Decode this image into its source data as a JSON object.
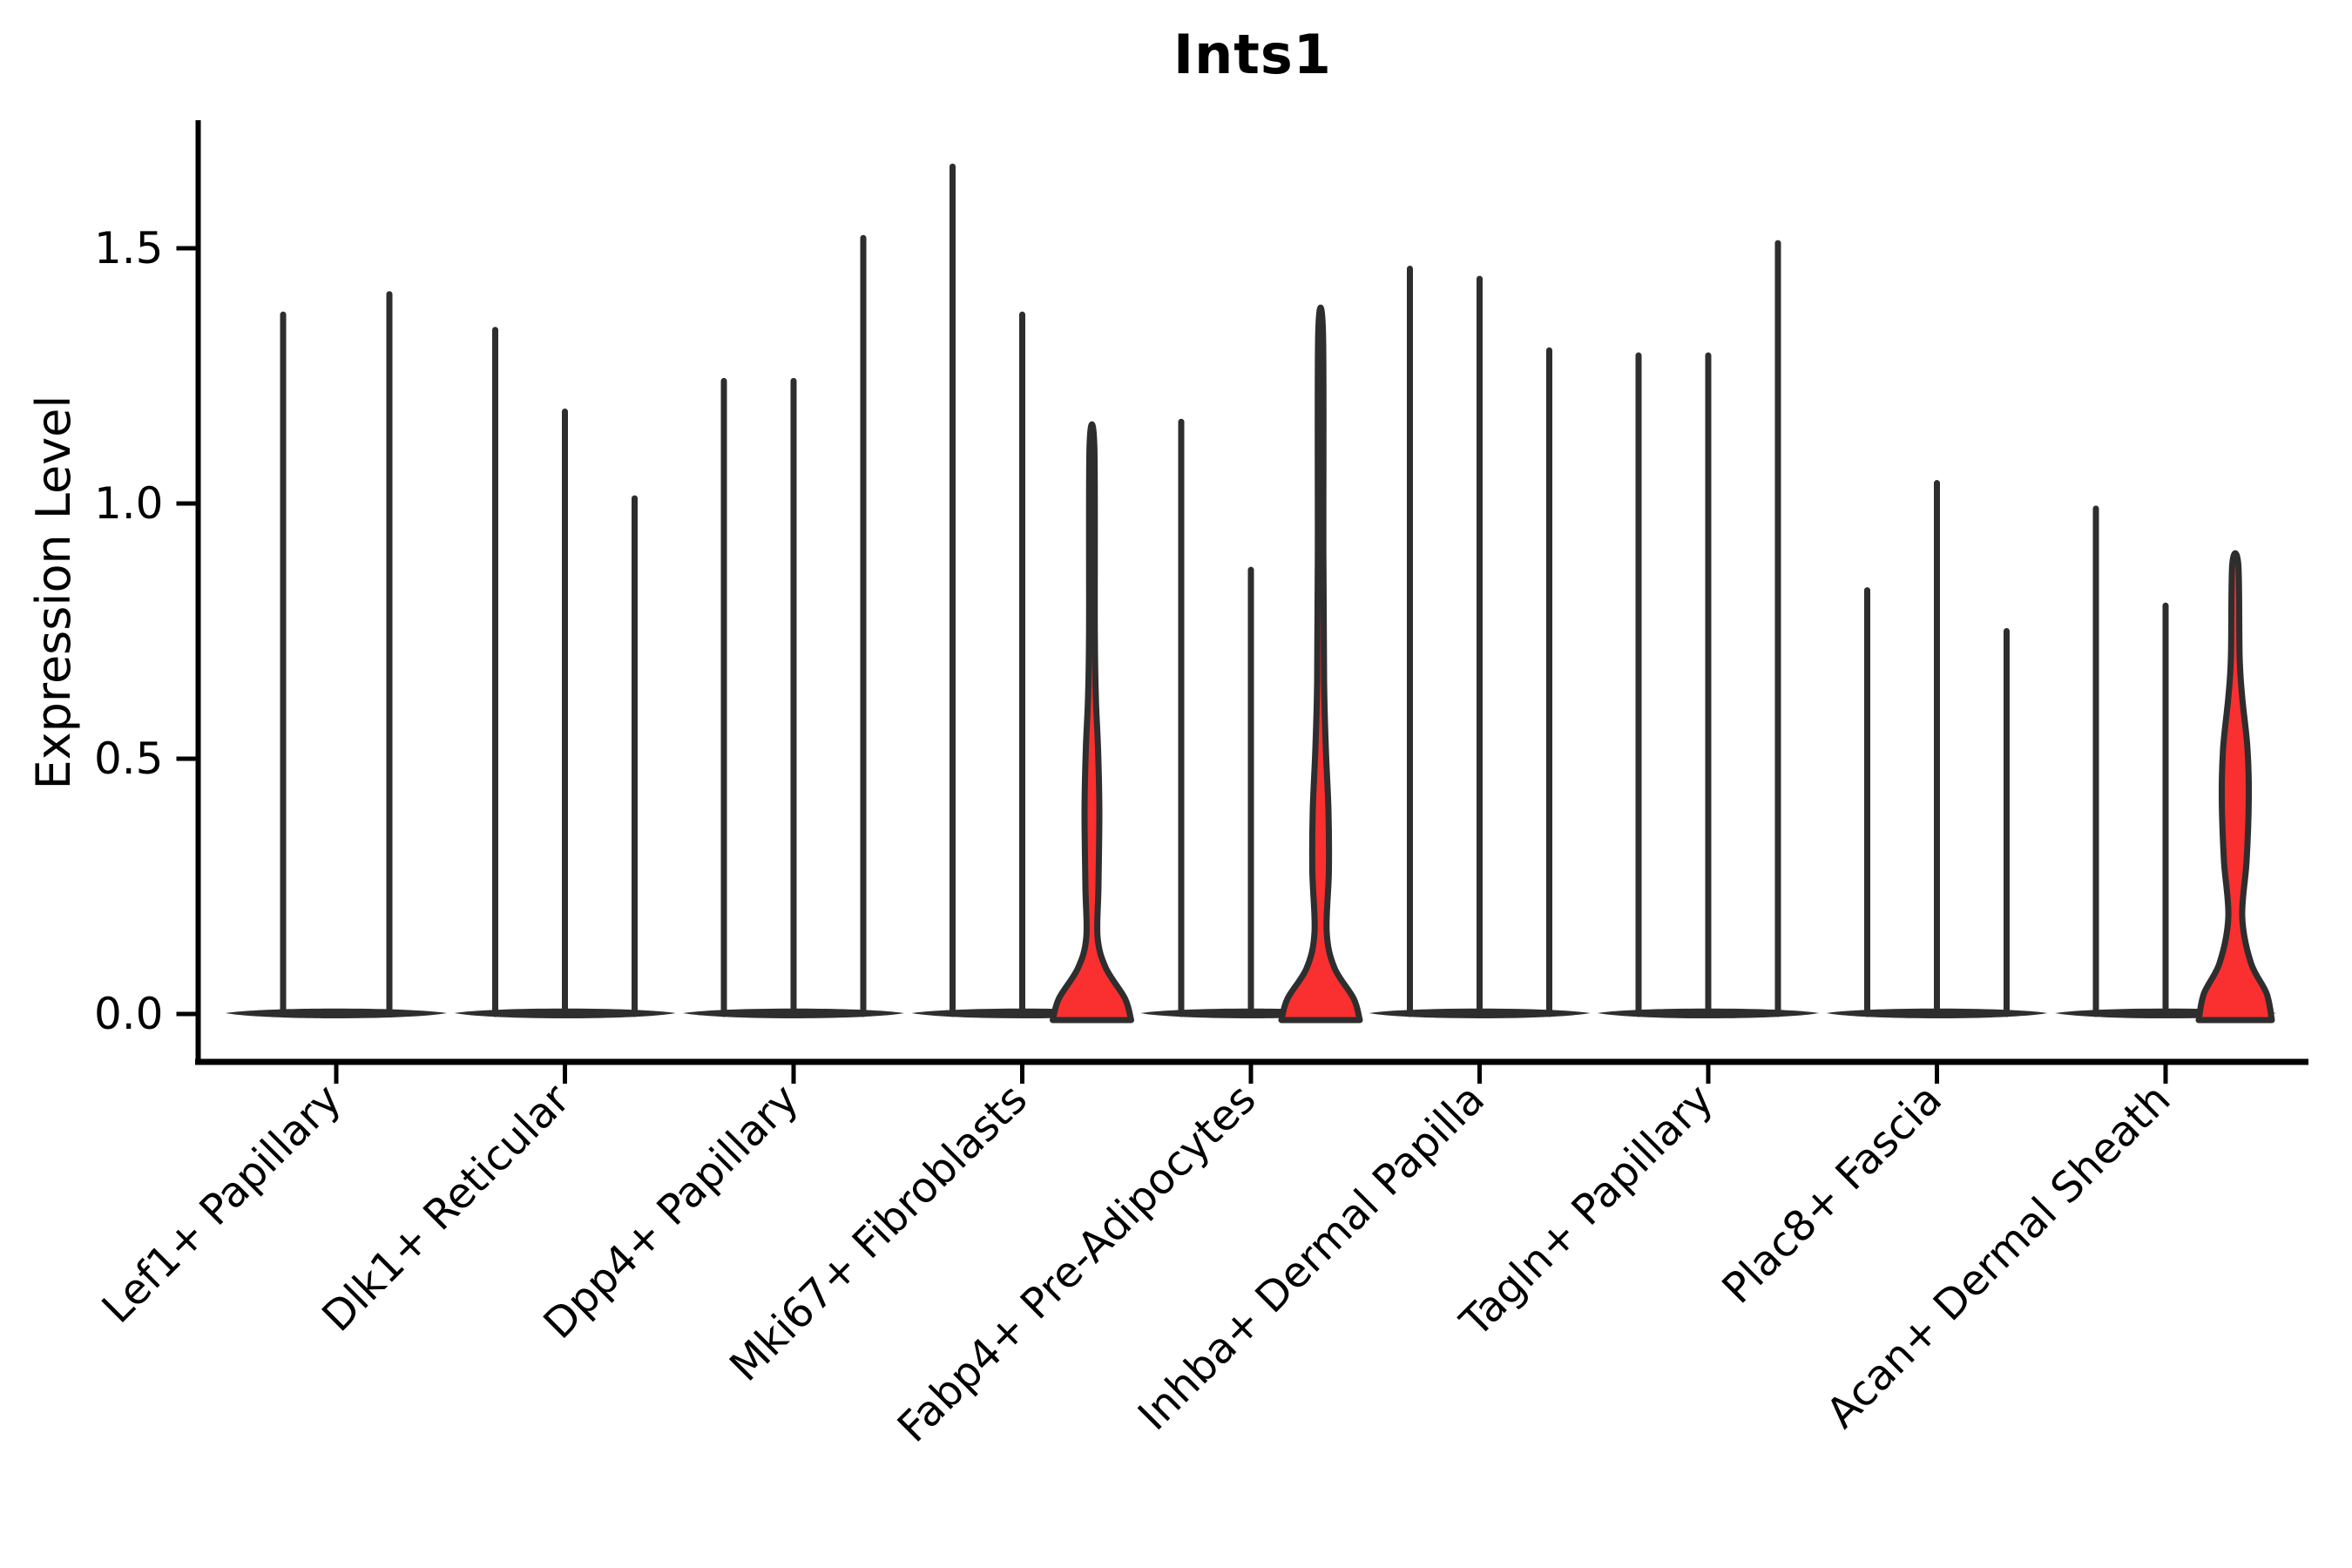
{
  "title": "Ints1",
  "y_axis": {
    "label": "Expression Level",
    "tick_labels": [
      "0.0",
      "0.5",
      "1.0",
      "1.5"
    ]
  },
  "colors": {
    "highlight_fill": "#fa2f2f",
    "violin_edge": "#2e2e2e",
    "axis_color": "#000000",
    "background": "#ffffff"
  },
  "chart_data": {
    "type": "violin",
    "title": "Ints1",
    "ylabel": "Expression Level",
    "ylim": [
      -0.09,
      1.75
    ],
    "yticks": [
      0.0,
      0.5,
      1.0,
      1.5
    ],
    "grid": false,
    "legend": "none",
    "categories": [
      "Lef1+ Papillary",
      "Dlk1+ Reticular",
      "Dpp4+ Papillary",
      "Mki67+ Fibroblasts",
      "Fabp4+ Pre-Adipocytes",
      "Inhba+ Dermal Papilla",
      "Tagln+ Papillary",
      "Plac8+ Fascia",
      "Acan+ Dermal Sheath"
    ],
    "groups": [
      {
        "label": "Lef1+ Papillary",
        "violins": [
          {
            "max": 1.37,
            "highlighted": false
          },
          {
            "max": 1.41,
            "highlighted": false
          }
        ]
      },
      {
        "label": "Dlk1+ Reticular",
        "violins": [
          {
            "max": 1.34,
            "highlighted": false
          },
          {
            "max": 1.18,
            "highlighted": false
          },
          {
            "max": 1.01,
            "highlighted": false
          }
        ]
      },
      {
        "label": "Dpp4+ Papillary",
        "violins": [
          {
            "max": 1.24,
            "highlighted": false
          },
          {
            "max": 1.24,
            "highlighted": false
          },
          {
            "max": 1.52,
            "highlighted": false
          }
        ]
      },
      {
        "label": "Mki67+ Fibroblasts",
        "violins": [
          {
            "max": 1.66,
            "highlighted": false
          },
          {
            "max": 1.37,
            "highlighted": false
          },
          {
            "max": 1.11,
            "highlighted": true,
            "profile": [
              [
                0,
                45
              ],
              [
                0.03,
                38
              ],
              [
                0.09,
                16
              ],
              [
                0.15,
                6.5
              ],
              [
                0.25,
                7.5
              ],
              [
                0.4,
                8.5
              ],
              [
                0.52,
                7
              ],
              [
                0.62,
                4.5
              ],
              [
                0.75,
                3.3
              ],
              [
                1.11,
                2.8
              ]
            ]
          }
        ]
      },
      {
        "label": "Fabp4+ Pre-Adipocytes",
        "violins": [
          {
            "max": 1.16,
            "highlighted": false
          },
          {
            "max": 0.87,
            "highlighted": false
          },
          {
            "max": 1.33,
            "highlighted": true,
            "profile": [
              [
                0,
                45
              ],
              [
                0.03,
                38
              ],
              [
                0.09,
                16
              ],
              [
                0.16,
                7
              ],
              [
                0.28,
                9.5
              ],
              [
                0.4,
                9
              ],
              [
                0.52,
                6
              ],
              [
                0.65,
                4
              ],
              [
                0.9,
                3.2
              ],
              [
                1.33,
                2.8
              ]
            ]
          }
        ]
      },
      {
        "label": "Inhba+ Dermal Papilla",
        "violins": [
          {
            "max": 1.46,
            "highlighted": false
          },
          {
            "max": 1.44,
            "highlighted": false
          },
          {
            "max": 1.3,
            "highlighted": false
          }
        ]
      },
      {
        "label": "Tagln+ Papillary",
        "violins": [
          {
            "max": 1.29,
            "highlighted": false
          },
          {
            "max": 1.29,
            "highlighted": false
          },
          {
            "max": 1.51,
            "highlighted": false
          }
        ]
      },
      {
        "label": "Plac8+ Fascia",
        "violins": [
          {
            "max": 0.83,
            "highlighted": false
          },
          {
            "max": 1.04,
            "highlighted": false
          },
          {
            "max": 0.75,
            "highlighted": false
          }
        ]
      },
      {
        "label": "Acan+ Dermal Sheath",
        "violins": [
          {
            "max": 0.99,
            "highlighted": false
          },
          {
            "max": 0.8,
            "highlighted": false
          },
          {
            "max": 0.88,
            "highlighted": true,
            "profile": [
              [
                0,
                42
              ],
              [
                0.04,
                36
              ],
              [
                0.1,
                18
              ],
              [
                0.19,
                8
              ],
              [
                0.3,
                13
              ],
              [
                0.42,
                15.5
              ],
              [
                0.52,
                14
              ],
              [
                0.62,
                8
              ],
              [
                0.7,
                5
              ],
              [
                0.88,
                3.5
              ]
            ]
          }
        ]
      }
    ]
  }
}
